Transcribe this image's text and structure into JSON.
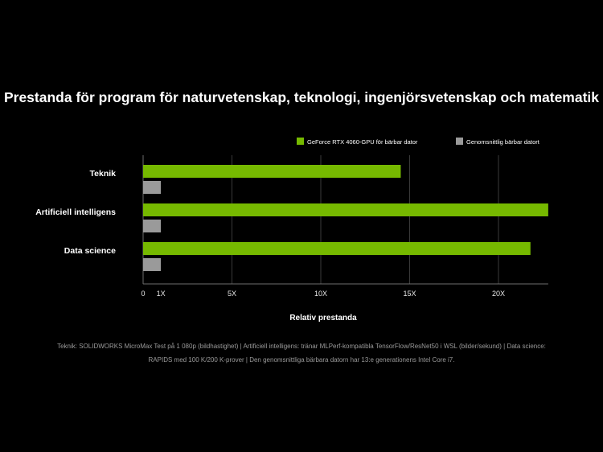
{
  "chart_data": {
    "type": "bar",
    "orientation": "horizontal",
    "title": "Prestanda för program för naturvetenskap, teknologi, ingenjörsvetenskap och matematik",
    "xlabel": "Relativ prestanda",
    "ylabel": "",
    "categories": [
      "Teknik",
      "Artificiell intelligens",
      "Data science"
    ],
    "series": [
      {
        "name": "GeForce RTX 4060-GPU för bärbar dator",
        "color": "#76b900",
        "values": [
          14.5,
          22.8,
          21.8
        ]
      },
      {
        "name": "Genomsnittlig bärbar datort",
        "color": "#9a9a9a",
        "values": [
          1,
          1,
          1
        ]
      }
    ],
    "xticks": [
      {
        "value": 0,
        "label": "0"
      },
      {
        "value": 1,
        "label": "1X"
      },
      {
        "value": 5,
        "label": "5X"
      },
      {
        "value": 10,
        "label": "10X"
      },
      {
        "value": 15,
        "label": "15X"
      },
      {
        "value": 20,
        "label": "20X"
      }
    ],
    "gridlines_at": [
      5,
      10,
      15,
      20
    ],
    "grid": true,
    "legend_position": "top-right",
    "xlim": [
      0,
      22.8
    ]
  },
  "footnote": {
    "line1": "Teknik: SOLIDWORKS MicroMax Test på 1 080p (bildhastighet) | Artificiell intelligens: tränar MLPerf-kompatibla TensorFlow/ResNet50 i WSL (bilder/sekund) | Data science:",
    "line2": "RAPIDS med 100 K/200 K-prover |  Den genomsnittliga bärbara datorn har 13:e generationens Intel Core i7."
  }
}
